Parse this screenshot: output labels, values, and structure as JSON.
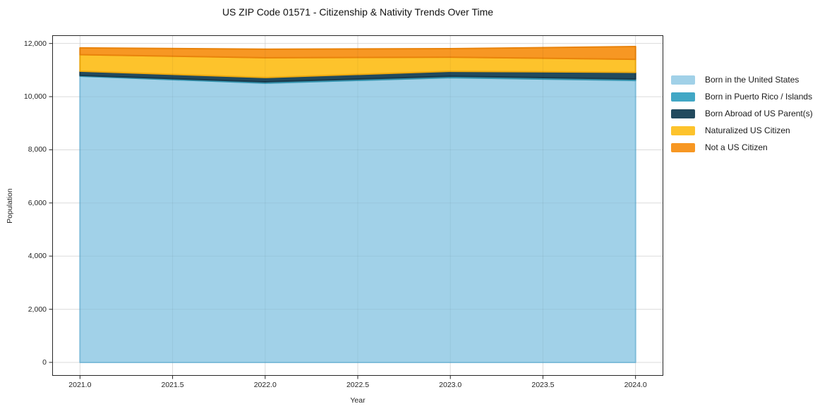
{
  "title": "US ZIP Code 01571 - Citizenship & Nativity Trends Over Time",
  "chart_data": {
    "type": "area",
    "stacked": true,
    "title": "US ZIP Code 01571 - Citizenship & Nativity Trends Over Time",
    "xlabel": "Year",
    "ylabel": "Population",
    "x": [
      2021,
      2022,
      2023,
      2024
    ],
    "series": [
      {
        "name": "Born in the United States",
        "color": "#a1d1e8",
        "edge": "#84c2e0",
        "values": [
          10770,
          10510,
          10715,
          10610
        ]
      },
      {
        "name": "Born in Puerto Rico / Islands",
        "color": "#41a7c5",
        "edge": "#3593ae",
        "values": [
          30,
          50,
          55,
          55
        ]
      },
      {
        "name": "Born Abroad of US Parent(s)",
        "color": "#224a5e",
        "edge": "#18394a",
        "values": [
          160,
          160,
          185,
          250
        ]
      },
      {
        "name": "Naturalized US Citizen",
        "color": "#fdc32c",
        "edge": "#efab10",
        "values": [
          620,
          745,
          530,
          490
        ]
      },
      {
        "name": "Not a US Citizen",
        "color": "#f79723",
        "edge": "#e9830b",
        "values": [
          255,
          320,
          320,
          480
        ]
      }
    ],
    "xlim": [
      2020.85,
      2024.15
    ],
    "ylim": [
      -505,
      12310
    ],
    "grid": true,
    "legend_position": "right",
    "x_axis": {
      "label": "Year",
      "ticks": [
        {
          "v": 2021.0,
          "label": "2021.0"
        },
        {
          "v": 2021.5,
          "label": "2021.5"
        },
        {
          "v": 2022.0,
          "label": "2022.0"
        },
        {
          "v": 2022.5,
          "label": "2022.5"
        },
        {
          "v": 2023.0,
          "label": "2023.0"
        },
        {
          "v": 2023.5,
          "label": "2023.5"
        },
        {
          "v": 2024.0,
          "label": "2024.0"
        }
      ]
    },
    "y_axis": {
      "label": "Population",
      "ticks": [
        {
          "v": 0,
          "label": "0"
        },
        {
          "v": 2000,
          "label": "2,000"
        },
        {
          "v": 4000,
          "label": "4,000"
        },
        {
          "v": 6000,
          "label": "6,000"
        },
        {
          "v": 8000,
          "label": "8,000"
        },
        {
          "v": 10000,
          "label": "10,000"
        },
        {
          "v": 12000,
          "label": "12,000"
        }
      ]
    },
    "style": {
      "grid_color": "#e7e7e7",
      "spine_color": "#262626",
      "tick_color": "#262626",
      "text_color": "#262626",
      "background": "#ffffff"
    }
  }
}
